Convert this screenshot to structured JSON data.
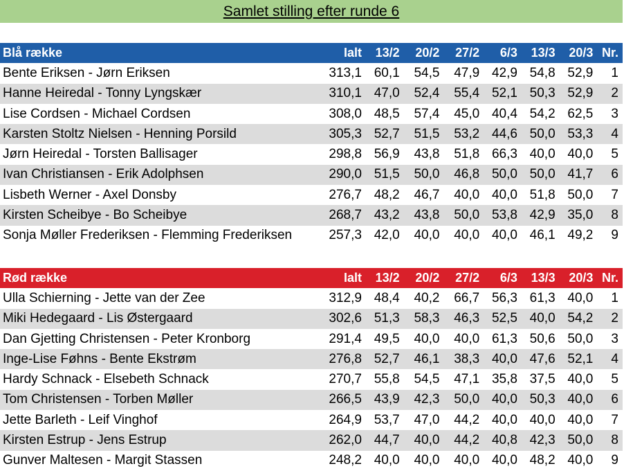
{
  "title": "Samlet stilling efter runde 6",
  "headers": [
    "Ialt",
    "13/2",
    "20/2",
    "27/2",
    "6/3",
    "13/3",
    "20/3",
    "Nr."
  ],
  "groups": [
    {
      "name": "Blå række",
      "rows": [
        [
          "Bente Eriksen - Jørn Eriksen",
          "313,1",
          "60,1",
          "54,5",
          "47,9",
          "42,9",
          "54,8",
          "52,9",
          "1"
        ],
        [
          "Hanne Heiredal - Tonny Lyngskær",
          "310,1",
          "47,0",
          "52,4",
          "55,4",
          "52,1",
          "50,3",
          "52,9",
          "2"
        ],
        [
          "Lise Cordsen - Michael Cordsen",
          "308,0",
          "48,5",
          "57,4",
          "45,0",
          "40,4",
          "54,2",
          "62,5",
          "3"
        ],
        [
          "Karsten Stoltz Nielsen - Henning Porsild",
          "305,3",
          "52,7",
          "51,5",
          "53,2",
          "44,6",
          "50,0",
          "53,3",
          "4"
        ],
        [
          "Jørn Heiredal - Torsten Ballisager",
          "298,8",
          "56,9",
          "43,8",
          "51,8",
          "66,3",
          "40,0",
          "40,0",
          "5"
        ],
        [
          "Ivan Christiansen - Erik Adolphsen",
          "290,0",
          "51,5",
          "50,0",
          "46,8",
          "50,0",
          "50,0",
          "41,7",
          "6"
        ],
        [
          "Lisbeth Werner - Axel Donsby",
          "276,7",
          "48,2",
          "46,7",
          "40,0",
          "40,0",
          "51,8",
          "50,0",
          "7"
        ],
        [
          "Kirsten Scheibye - Bo Scheibye",
          "268,7",
          "43,2",
          "43,8",
          "50,0",
          "53,8",
          "42,9",
          "35,0",
          "8"
        ],
        [
          "Sonja Møller Frederiksen - Flemming Frederiksen",
          "257,3",
          "42,0",
          "40,0",
          "40,0",
          "40,0",
          "46,1",
          "49,2",
          "9"
        ]
      ]
    },
    {
      "name": "Rød række",
      "rows": [
        [
          "Ulla Schierning - Jette van der Zee",
          "312,9",
          "48,4",
          "40,2",
          "66,7",
          "56,3",
          "61,3",
          "40,0",
          "1"
        ],
        [
          "Miki Hedegaard - Lis Østergaard",
          "302,6",
          "51,3",
          "58,3",
          "46,3",
          "52,5",
          "40,0",
          "54,2",
          "2"
        ],
        [
          "Dan Gjetting Christensen - Peter Kronborg",
          "291,4",
          "49,5",
          "40,0",
          "40,0",
          "61,3",
          "50,6",
          "50,0",
          "3"
        ],
        [
          "Inge-Lise Føhns - Bente Ekstrøm",
          "276,8",
          "52,7",
          "46,1",
          "38,3",
          "40,0",
          "47,6",
          "52,1",
          "4"
        ],
        [
          "Hardy Schnack - Elsebeth Schnack",
          "270,7",
          "55,8",
          "54,5",
          "47,1",
          "35,8",
          "37,5",
          "40,0",
          "5"
        ],
        [
          "Tom Christensen - Torben Møller",
          "266,5",
          "43,9",
          "42,3",
          "50,0",
          "40,0",
          "50,3",
          "40,0",
          "6"
        ],
        [
          "Jette Barleth - Leif Vinghof",
          "264,9",
          "53,7",
          "47,0",
          "44,2",
          "40,0",
          "40,0",
          "40,0",
          "7"
        ],
        [
          "Kirsten Estrup - Jens Estrup",
          "262,0",
          "44,7",
          "40,0",
          "44,2",
          "40,8",
          "42,3",
          "50,0",
          "8"
        ],
        [
          "Gunver Maltesen - Margit Stassen",
          "248,2",
          "40,0",
          "40,0",
          "40,0",
          "40,0",
          "48,2",
          "40,0",
          "9"
        ]
      ]
    }
  ]
}
